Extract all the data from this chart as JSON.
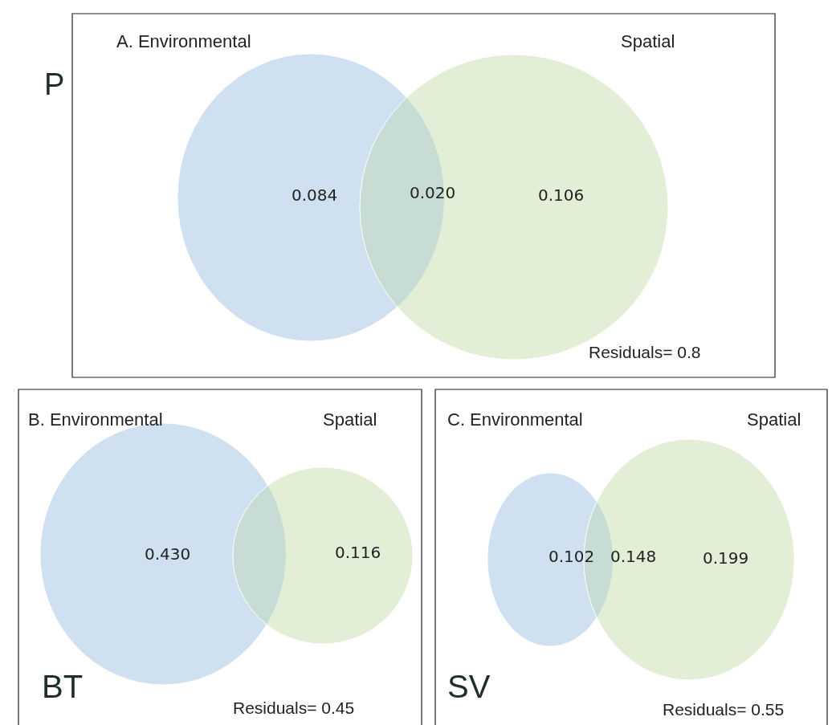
{
  "chart_data": [
    {
      "type": "other",
      "title": "P",
      "categories": [
        "A. Environmental",
        null,
        "Spatial"
      ],
      "values": [
        0.084,
        0.02,
        0.106
      ],
      "value_labels": [
        "0.084",
        "0.020",
        "0.106"
      ],
      "colors": [
        "#cfe0f0",
        "#c8dcd6",
        "#e2eed6"
      ],
      "annotations": [
        "Residuals= 0.8"
      ]
    },
    {
      "type": "other",
      "title": "BT",
      "categories": [
        "B. Environmental",
        null,
        "Spatial"
      ],
      "values": [
        0.43,
        null,
        0.116
      ],
      "value_labels": [
        "0.430",
        null,
        "0.116"
      ],
      "colors": [
        "#cfe0f0",
        "#c8dcd6",
        "#e2eed6"
      ],
      "annotations": [
        "Residuals= 0.45"
      ]
    },
    {
      "type": "other",
      "title": "SV",
      "categories": [
        "C. Environmental",
        null,
        "Spatial"
      ],
      "values": [
        0.102,
        0.148,
        0.199
      ],
      "value_labels": [
        "0.102",
        "0.148",
        "0.199"
      ],
      "colors": [
        "#cfe0f0",
        "#c8dcd6",
        "#e2eed6"
      ],
      "annotations": [
        "Residuals= 0.55"
      ]
    }
  ]
}
